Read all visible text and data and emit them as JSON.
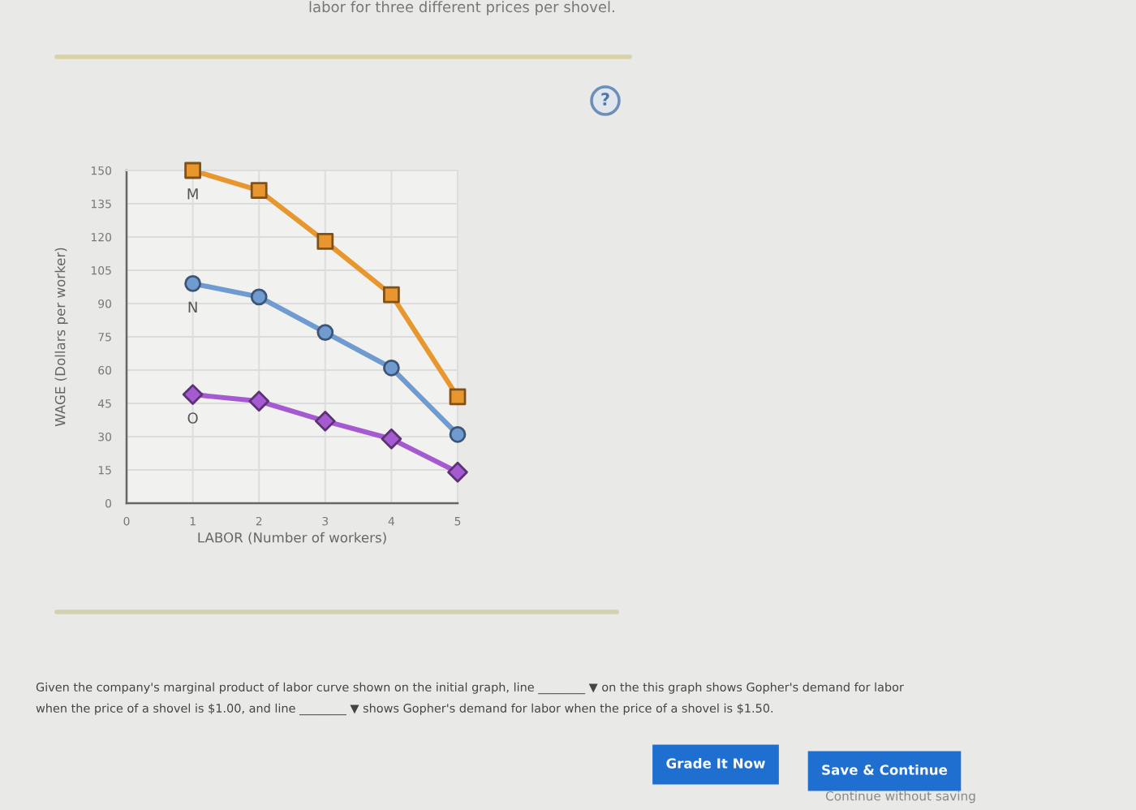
{
  "chart_data": {
    "type": "line",
    "xlabel": "LABOR (Number of workers)",
    "ylabel": "WAGE (Dollars per worker)",
    "x": [
      1,
      2,
      3,
      4,
      5
    ],
    "series": [
      {
        "name": "M",
        "color": "#e8962e",
        "marker": "square",
        "values": [
          150,
          141,
          118,
          94,
          48
        ]
      },
      {
        "name": "N",
        "color": "#6f9bd0",
        "marker": "circle",
        "values": [
          99,
          93,
          77,
          61,
          31
        ]
      },
      {
        "name": "O",
        "color": "#a55ad2",
        "marker": "diamond",
        "values": [
          49,
          46,
          37,
          29,
          14
        ]
      }
    ],
    "xlim": [
      0,
      5
    ],
    "xticks": [
      0,
      1,
      2,
      3,
      4,
      5
    ],
    "ylim": [
      0,
      150
    ],
    "yticks": [
      0,
      15,
      30,
      45,
      60,
      75,
      90,
      105,
      120,
      135,
      150
    ],
    "grid": true,
    "legend": false,
    "annotations": [
      "labor for three different prices per shovel.",
      "?",
      "Given the company's marginal product of labor curve shown on the initial graph, line ________ ▼ on the this graph shows Gopher's demand for labor",
      "when the price of a shovel is $1.00, and line ________ ▼ shows Gopher's demand for labor when the price of a shovel is $1.50.",
      "Grade It Now",
      "Save & Continue",
      "Continue without saving"
    ]
  }
}
